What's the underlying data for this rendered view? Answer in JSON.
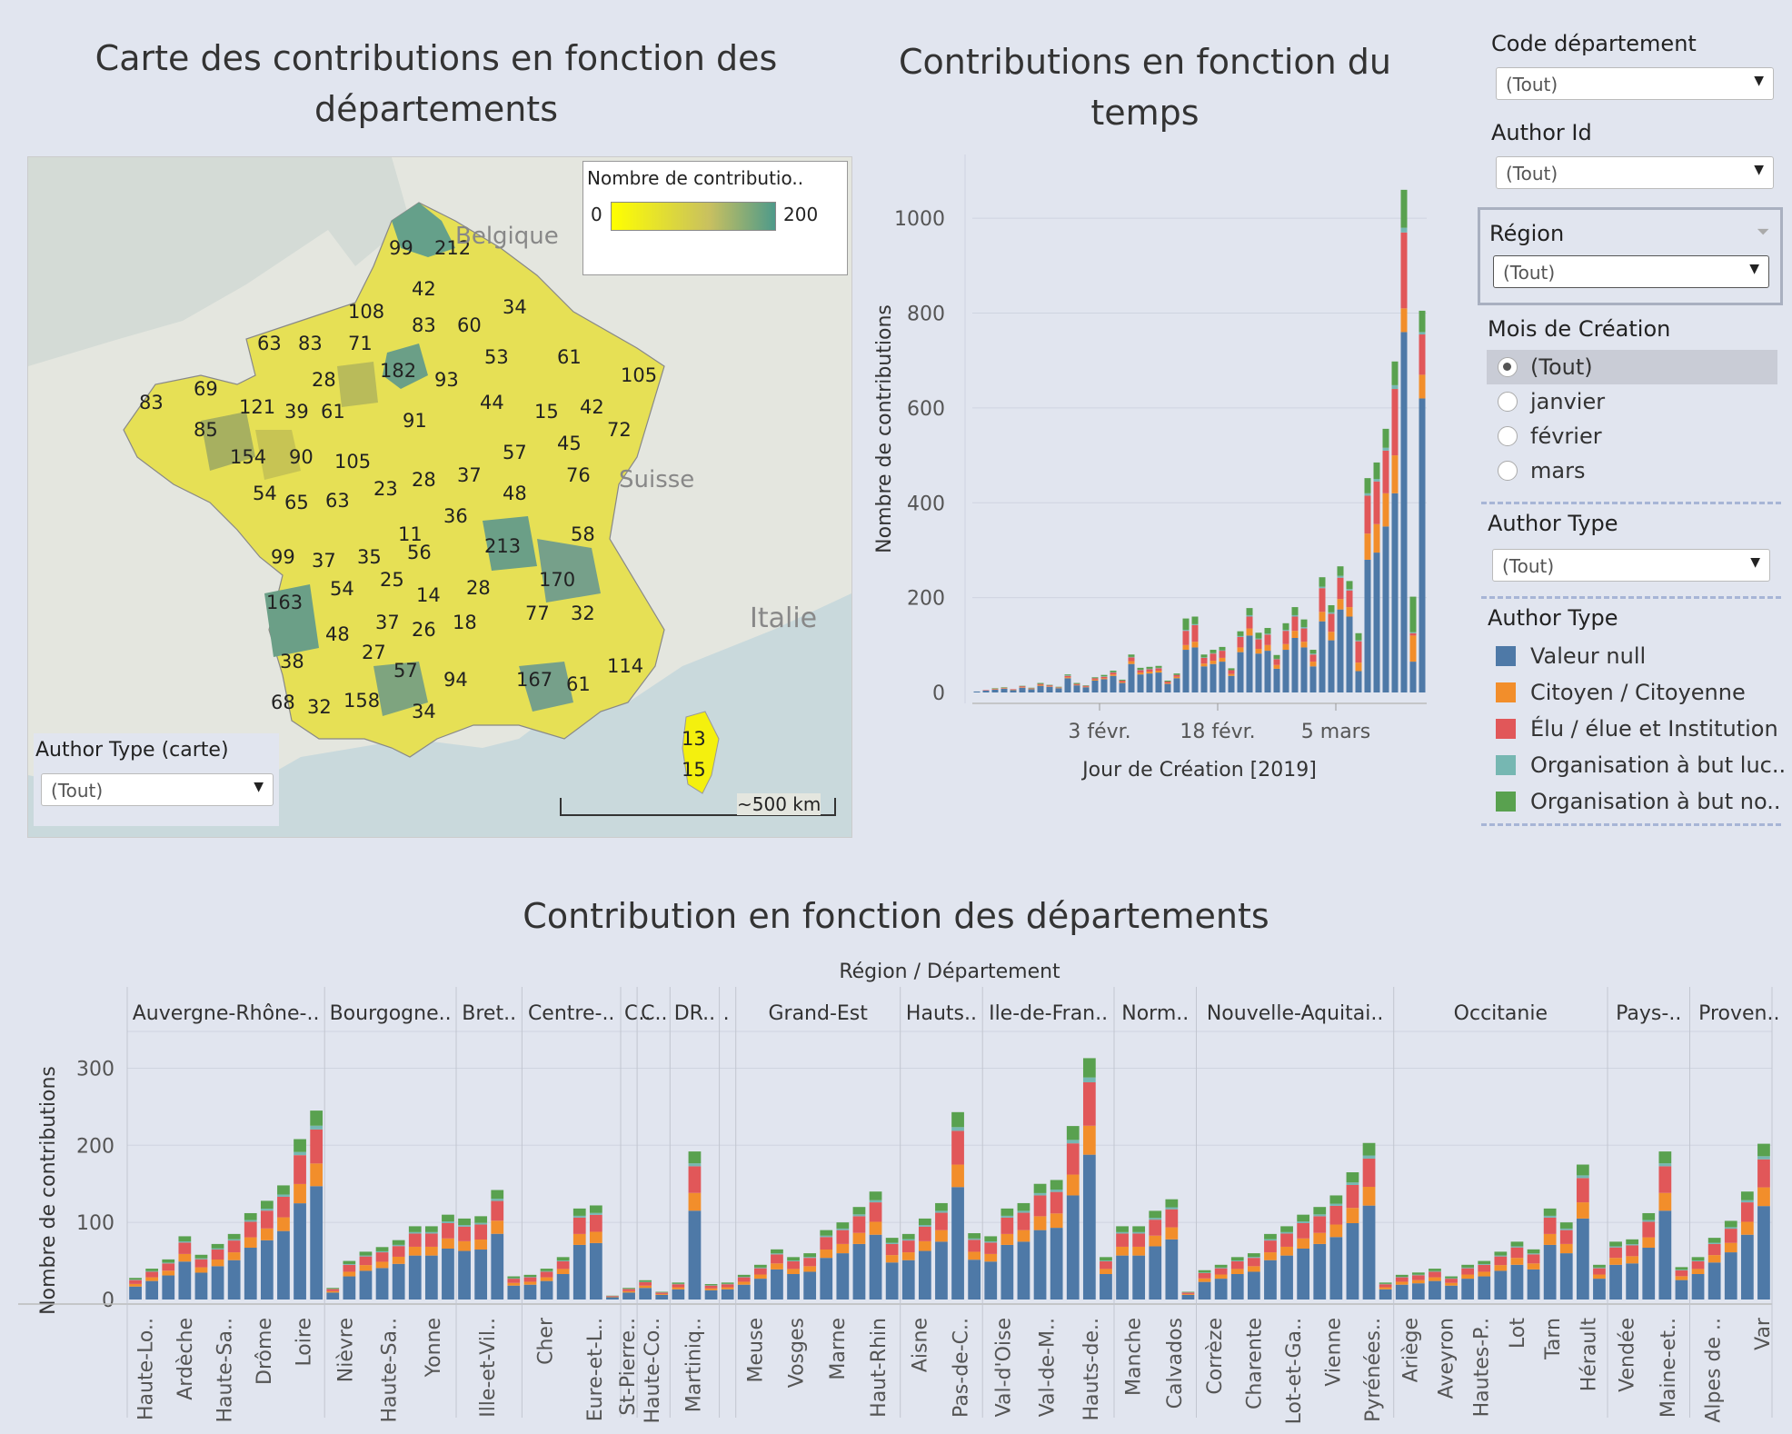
{
  "titles": {
    "map": "Carte des contributions en fonction des départements",
    "time": "Contributions en fonction du temps",
    "dept": "Contribution en fonction des départements"
  },
  "colors": {
    "valeur_null": "#4e79a7",
    "citoyen": "#f28e2b",
    "elu": "#e15759",
    "org_luc": "#76b7b2",
    "org_non": "#59a14f",
    "background": "#e1e5ef"
  },
  "map": {
    "legend_title": "Nombre de contributio..",
    "legend_min": "0",
    "legend_max": "200",
    "country_labels": [
      "Belgique",
      "Suisse",
      "Italie"
    ],
    "scale_label": "~500 km",
    "author_type_label": "Author Type (carte)",
    "author_type_value": "(Tout)",
    "dept_values": [
      "99",
      "212",
      "42",
      "34",
      "108",
      "83",
      "60",
      "63",
      "83",
      "71",
      "53",
      "61",
      "105",
      "28",
      "182",
      "93",
      "69",
      "121",
      "39",
      "61",
      "44",
      "15",
      "42",
      "83",
      "91",
      "72",
      "85",
      "45",
      "154",
      "90",
      "105",
      "57",
      "76",
      "28",
      "37",
      "54",
      "65",
      "63",
      "23",
      "48",
      "36",
      "11",
      "58",
      "213",
      "99",
      "37",
      "35",
      "56",
      "170",
      "163",
      "54",
      "25",
      "28",
      "14",
      "77",
      "32",
      "18",
      "37",
      "26",
      "48",
      "27",
      "57",
      "94",
      "114",
      "38",
      "167",
      "61",
      "68",
      "32",
      "158",
      "34",
      "13",
      "15"
    ]
  },
  "filters": {
    "code_dept_label": "Code département",
    "code_dept_value": "(Tout)",
    "author_id_label": "Author Id",
    "author_id_value": "(Tout)",
    "region_label": "Région",
    "region_value": "(Tout)",
    "mois_label": "Mois de Création",
    "mois_options": [
      "(Tout)",
      "janvier",
      "février",
      "mars"
    ],
    "mois_selected": "(Tout)",
    "author_type_label": "Author Type",
    "author_type_value": "(Tout)"
  },
  "legend": {
    "title": "Author Type",
    "items": [
      "Valeur null",
      "Citoyen / Citoyenne",
      "Élu / élue et Institution",
      "Organisation à but luc..",
      "Organisation à but no.."
    ]
  },
  "chart_data": [
    {
      "type": "bar",
      "stacked": true,
      "title": "Contributions en fonction du temps",
      "xlabel": "Jour de Création [2019]",
      "ylabel": "Nombre de contributions",
      "ylim": [
        0,
        1100
      ],
      "yticks": [
        0,
        200,
        400,
        600,
        800,
        1000
      ],
      "xticks": [
        "3 févr.",
        "18 févr.",
        "5 mars"
      ],
      "series_names": [
        "Valeur null",
        "Citoyen / Citoyenne",
        "Élu / élue et Institution",
        "Organisation à but luc..",
        "Organisation à but no.."
      ],
      "stacks": [
        [
          2,
          0,
          0,
          0,
          0
        ],
        [
          4,
          0,
          1,
          0,
          0
        ],
        [
          6,
          1,
          1,
          0,
          1
        ],
        [
          8,
          1,
          1,
          0,
          1
        ],
        [
          5,
          1,
          1,
          0,
          0
        ],
        [
          10,
          1,
          2,
          0,
          1
        ],
        [
          7,
          1,
          1,
          0,
          1
        ],
        [
          14,
          2,
          2,
          0,
          2
        ],
        [
          12,
          1,
          2,
          0,
          1
        ],
        [
          9,
          1,
          1,
          0,
          1
        ],
        [
          30,
          2,
          3,
          1,
          2
        ],
        [
          15,
          1,
          2,
          0,
          2
        ],
        [
          11,
          1,
          2,
          0,
          1
        ],
        [
          25,
          2,
          3,
          0,
          2
        ],
        [
          28,
          2,
          3,
          1,
          3
        ],
        [
          35,
          3,
          4,
          1,
          3
        ],
        [
          20,
          2,
          3,
          0,
          2
        ],
        [
          60,
          6,
          8,
          1,
          5
        ],
        [
          38,
          4,
          5,
          1,
          4
        ],
        [
          40,
          4,
          5,
          1,
          4
        ],
        [
          42,
          4,
          5,
          1,
          4
        ],
        [
          18,
          2,
          3,
          0,
          2
        ],
        [
          30,
          3,
          4,
          0,
          3
        ],
        [
          90,
          10,
          30,
          2,
          24
        ],
        [
          95,
          12,
          35,
          2,
          16
        ],
        [
          55,
          6,
          12,
          1,
          6
        ],
        [
          60,
          7,
          15,
          1,
          7
        ],
        [
          65,
          8,
          15,
          1,
          7
        ],
        [
          35,
          4,
          8,
          0,
          4
        ],
        [
          85,
          10,
          22,
          2,
          10
        ],
        [
          120,
          15,
          25,
          3,
          15
        ],
        [
          82,
          10,
          20,
          2,
          12
        ],
        [
          88,
          12,
          22,
          2,
          12
        ],
        [
          50,
          8,
          12,
          1,
          8
        ],
        [
          90,
          12,
          28,
          2,
          14
        ],
        [
          115,
          15,
          30,
          3,
          17
        ],
        [
          95,
          12,
          28,
          3,
          16
        ],
        [
          55,
          10,
          15,
          2,
          8
        ],
        [
          150,
          20,
          50,
          3,
          20
        ],
        [
          110,
          18,
          38,
          3,
          15
        ],
        [
          175,
          22,
          45,
          4,
          20
        ],
        [
          160,
          20,
          35,
          3,
          17
        ],
        [
          45,
          18,
          45,
          2,
          15
        ],
        [
          280,
          55,
          80,
          5,
          32
        ],
        [
          295,
          60,
          90,
          5,
          35
        ],
        [
          350,
          70,
          90,
          6,
          40
        ],
        [
          420,
          80,
          140,
          8,
          50
        ],
        [
          760,
          50,
          160,
          10,
          80
        ],
        [
          65,
          55,
          5,
          2,
          75
        ],
        [
          620,
          50,
          85,
          5,
          45
        ]
      ]
    },
    {
      "type": "bar",
      "stacked": true,
      "title": "Contribution en fonction des départements",
      "xlabel": "Région / Département",
      "ylabel": "Nombre de contributions",
      "ylim": [
        0,
        330
      ],
      "yticks": [
        0,
        100,
        200,
        300
      ],
      "regions": [
        {
          "name": "Auvergne-Rhône-..",
          "depts": 12,
          "ticks": [
            "Haute-Lo..",
            "Ardèche",
            "Haute-Sa..",
            "Drôme",
            "Loire"
          ]
        },
        {
          "name": "Bourgogne..",
          "depts": 8,
          "ticks": [
            "Nièvre",
            "Haute-Sa..",
            "Yonne"
          ]
        },
        {
          "name": "Bret..",
          "depts": 4,
          "ticks": [
            "Ille-et-Vil.."
          ]
        },
        {
          "name": "Centre-..",
          "depts": 6,
          "ticks": [
            "Cher",
            "Eure-et-L.."
          ]
        },
        {
          "name": "C..",
          "depts": 1,
          "ticks": [
            "St-Pierre.."
          ]
        },
        {
          "name": "C..",
          "depts": 2,
          "ticks": [
            "Haute-Co.."
          ]
        },
        {
          "name": "DR..",
          "depts": 3,
          "ticks": [
            "Martiniq.."
          ]
        },
        {
          "name": ".",
          "depts": 1,
          "ticks": []
        },
        {
          "name": "Grand-Est",
          "depts": 10,
          "ticks": [
            "Meuse",
            "Vosges",
            "Marne",
            "Haut-Rhin"
          ]
        },
        {
          "name": "Hauts..",
          "depts": 5,
          "ticks": [
            "Aisne",
            "Pas-de-C.."
          ]
        },
        {
          "name": "Ile-de-Fran..",
          "depts": 8,
          "ticks": [
            "Val-d'Oise",
            "Val-de-M..",
            "Hauts-de.."
          ]
        },
        {
          "name": "Norm..",
          "depts": 5,
          "ticks": [
            "Manche",
            "Calvados"
          ]
        },
        {
          "name": "Nouvelle-Aquitai..",
          "depts": 12,
          "ticks": [
            "Corrèze",
            "Charente",
            "Lot-et-Ga..",
            "Vienne",
            "Pyrénées.."
          ]
        },
        {
          "name": "Occitanie",
          "depts": 13,
          "ticks": [
            "Ariège",
            "Aveyron",
            "Hautes-P..",
            "Lot",
            "Tarn",
            "Hérault"
          ]
        },
        {
          "name": "Pays-..",
          "depts": 5,
          "ticks": [
            "Vendée",
            "Maine-et.."
          ]
        },
        {
          "name": "Proven..",
          "depts": 6,
          "ticks": [
            "Alpes de ..",
            "Var"
          ]
        }
      ],
      "totals": [
        28,
        40,
        52,
        82,
        58,
        72,
        85,
        112,
        128,
        148,
        208,
        245,
        15,
        50,
        62,
        68,
        77,
        95,
        95,
        110,
        105,
        108,
        142,
        30,
        32,
        40,
        55,
        118,
        122,
        5,
        15,
        25,
        10,
        22,
        192,
        20,
        22,
        32,
        45,
        65,
        55,
        60,
        90,
        100,
        120,
        140,
        80,
        85,
        105,
        125,
        243,
        86,
        82,
        118,
        125,
        150,
        155,
        225,
        313,
        55,
        95,
        95,
        115,
        130,
        10,
        38,
        45,
        55,
        60,
        85,
        95,
        110,
        120,
        135,
        165,
        203,
        22,
        32,
        35,
        40,
        30,
        45,
        50,
        62,
        75,
        65,
        118,
        100,
        175,
        45,
        75,
        78,
        112,
        192,
        42,
        55,
        80,
        102,
        140,
        202
      ]
    }
  ]
}
